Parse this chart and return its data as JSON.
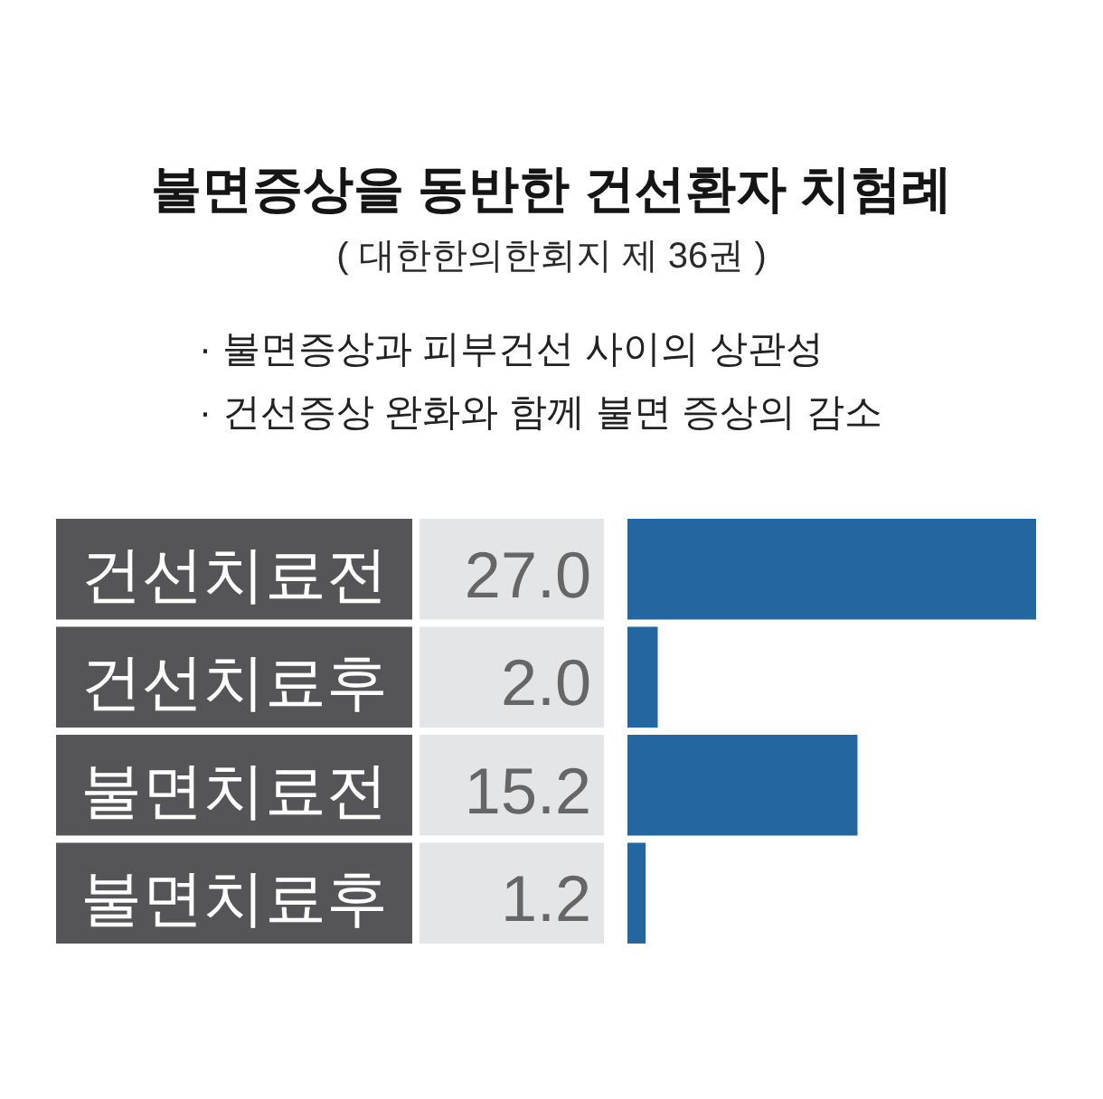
{
  "chart_data": {
    "type": "bar",
    "orientation": "horizontal",
    "title": "불면증상을 동반한 건선환자 치험례",
    "subtitle": "( 대한한의한회지 제 36권 )",
    "annotations": [
      "· 불면증상과 피부건선 사이의 상관성",
      "· 건선증상 완화와 함께 불면 증상의 감소"
    ],
    "categories": [
      "건선치료전",
      "건선치료후",
      "불면치료전",
      "불면치료후"
    ],
    "values": [
      27.0,
      2.0,
      15.2,
      1.2
    ],
    "value_labels": [
      "27.0",
      "2.0",
      "15.2",
      "1.2"
    ],
    "color": "#24669f"
  }
}
